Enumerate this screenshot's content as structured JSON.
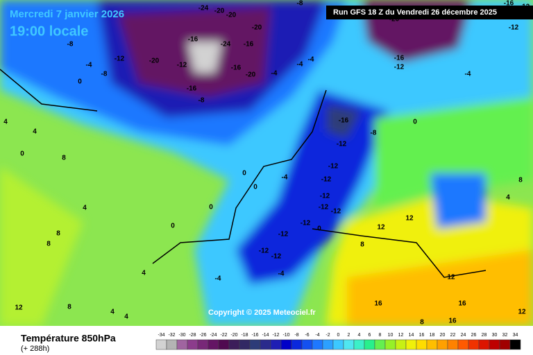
{
  "header": {
    "date": "Mercredi 7 janvier 2026",
    "time": "19:00 locale",
    "run": "Run GFS 18 Z du Vendredi 26 décembre 2025"
  },
  "copyright": "Copyright © 2025 Meteociel.fr",
  "legend": {
    "title": "Température 850hPa",
    "lead": "(+ 288h)",
    "values": [
      -34,
      -32,
      -30,
      -28,
      -26,
      -24,
      -22,
      -20,
      -18,
      -16,
      -14,
      -12,
      -10,
      -8,
      -6,
      -4,
      -2,
      0,
      2,
      4,
      6,
      8,
      10,
      12,
      14,
      16,
      18,
      20,
      22,
      24,
      26,
      28,
      30,
      32,
      34
    ],
    "colors": [
      "#d2d2d2",
      "#b4b4b4",
      "#a064a0",
      "#8c3c8c",
      "#782878",
      "#641464",
      "#500a50",
      "#3c1e5a",
      "#322864",
      "#2d3c78",
      "#2a2a8c",
      "#1e1eb4",
      "#0000c8",
      "#0a28dc",
      "#1450f0",
      "#1e78ff",
      "#2ca0ff",
      "#3cc8ff",
      "#50e6f0",
      "#3cf0c8",
      "#28f08c",
      "#64f050",
      "#96f028",
      "#c8f014",
      "#f0f00a",
      "#ffdc00",
      "#ffbe00",
      "#ffa000",
      "#ff8200",
      "#ff5a00",
      "#f03200",
      "#dc1400",
      "#be0000",
      "#a00000",
      "#000000"
    ]
  },
  "map": {
    "contour_labels": [
      -24,
      -20,
      -20,
      -8,
      -12,
      -16,
      -20,
      -12,
      -20,
      -16,
      -24,
      -16,
      -20,
      -12,
      -8,
      -4,
      0,
      -8,
      -12,
      -16,
      -20,
      -16,
      -8,
      -4,
      -4,
      -4,
      -4,
      -16,
      -12,
      -16,
      -8,
      -12,
      -12,
      0,
      4,
      4,
      0,
      8,
      -4,
      0,
      0,
      -12,
      -12,
      -12,
      -12,
      0,
      0,
      -12,
      0,
      12,
      8,
      12,
      -12,
      -12,
      -12,
      -4,
      -4,
      8,
      4,
      8,
      4,
      8,
      4,
      4,
      12,
      12,
      16,
      16,
      16,
      12,
      8,
      4,
      8
    ]
  }
}
